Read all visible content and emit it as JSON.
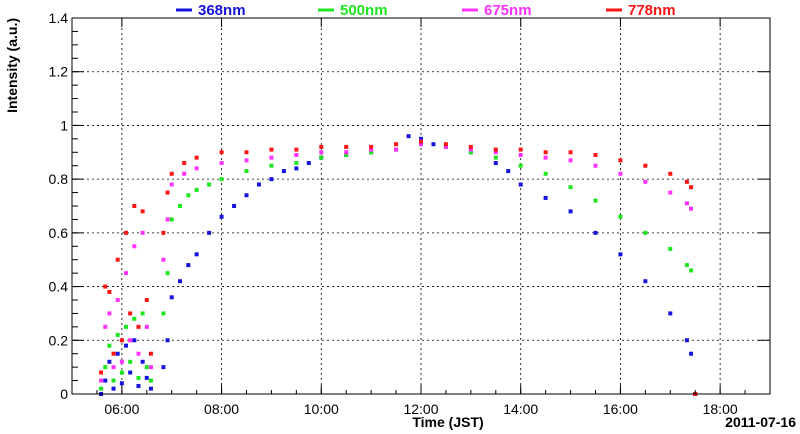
{
  "chart_data": {
    "type": "scatter",
    "title": "",
    "xlabel": "Time (JST)",
    "ylabel": "Intensity (a.u.)",
    "date_label": "2011-07-16",
    "xlim": [
      "05:00",
      "19:00"
    ],
    "ylim": [
      0,
      1.4
    ],
    "grid": true,
    "legend_position": "top",
    "x_ticks": [
      "06:00",
      "08:00",
      "10:00",
      "12:00",
      "14:00",
      "16:00",
      "18:00"
    ],
    "y_ticks": [
      "0",
      "0.2",
      "0.4",
      "0.6",
      "0.8",
      "1",
      "1.2",
      "1.4"
    ],
    "series": [
      {
        "name": "368nm",
        "color": "#1414dc",
        "points": [
          [
            "05:35",
            0.0
          ],
          [
            "05:40",
            0.05
          ],
          [
            "05:45",
            0.12
          ],
          [
            "05:50",
            0.02
          ],
          [
            "05:55",
            0.15
          ],
          [
            "06:00",
            0.04
          ],
          [
            "06:05",
            0.18
          ],
          [
            "06:10",
            0.08
          ],
          [
            "06:15",
            0.2
          ],
          [
            "06:20",
            0.03
          ],
          [
            "06:25",
            0.12
          ],
          [
            "06:30",
            0.06
          ],
          [
            "06:35",
            0.02
          ],
          [
            "06:50",
            0.1
          ],
          [
            "06:55",
            0.2
          ],
          [
            "07:00",
            0.36
          ],
          [
            "07:10",
            0.42
          ],
          [
            "07:20",
            0.48
          ],
          [
            "07:30",
            0.52
          ],
          [
            "07:45",
            0.6
          ],
          [
            "08:00",
            0.66
          ],
          [
            "08:15",
            0.7
          ],
          [
            "08:30",
            0.74
          ],
          [
            "08:45",
            0.78
          ],
          [
            "09:00",
            0.8
          ],
          [
            "09:15",
            0.83
          ],
          [
            "09:30",
            0.84
          ],
          [
            "09:45",
            0.86
          ],
          [
            "10:00",
            0.88
          ],
          [
            "10:30",
            0.89
          ],
          [
            "11:00",
            0.9
          ],
          [
            "11:30",
            0.91
          ],
          [
            "11:45",
            0.96
          ],
          [
            "12:00",
            0.95
          ],
          [
            "12:15",
            0.93
          ],
          [
            "12:30",
            0.92
          ],
          [
            "13:00",
            0.9
          ],
          [
            "13:30",
            0.86
          ],
          [
            "13:45",
            0.83
          ],
          [
            "14:00",
            0.78
          ],
          [
            "14:30",
            0.73
          ],
          [
            "15:00",
            0.68
          ],
          [
            "15:30",
            0.6
          ],
          [
            "16:00",
            0.52
          ],
          [
            "16:30",
            0.42
          ],
          [
            "17:00",
            0.3
          ],
          [
            "17:20",
            0.2
          ],
          [
            "17:25",
            0.15
          ],
          [
            "17:30",
            0.0
          ]
        ]
      },
      {
        "name": "500nm",
        "color": "#1ee61e",
        "points": [
          [
            "05:35",
            0.02
          ],
          [
            "05:40",
            0.1
          ],
          [
            "05:45",
            0.18
          ],
          [
            "05:50",
            0.05
          ],
          [
            "05:55",
            0.22
          ],
          [
            "06:00",
            0.08
          ],
          [
            "06:05",
            0.25
          ],
          [
            "06:10",
            0.12
          ],
          [
            "06:15",
            0.28
          ],
          [
            "06:20",
            0.06
          ],
          [
            "06:25",
            0.3
          ],
          [
            "06:30",
            0.1
          ],
          [
            "06:35",
            0.05
          ],
          [
            "06:50",
            0.3
          ],
          [
            "06:55",
            0.45
          ],
          [
            "07:00",
            0.65
          ],
          [
            "07:10",
            0.7
          ],
          [
            "07:20",
            0.74
          ],
          [
            "07:30",
            0.76
          ],
          [
            "07:45",
            0.78
          ],
          [
            "08:00",
            0.8
          ],
          [
            "08:30",
            0.83
          ],
          [
            "09:00",
            0.85
          ],
          [
            "09:30",
            0.86
          ],
          [
            "10:00",
            0.88
          ],
          [
            "10:30",
            0.89
          ],
          [
            "11:00",
            0.9
          ],
          [
            "11:30",
            0.91
          ],
          [
            "12:00",
            0.93
          ],
          [
            "12:30",
            0.92
          ],
          [
            "13:00",
            0.9
          ],
          [
            "13:30",
            0.88
          ],
          [
            "14:00",
            0.85
          ],
          [
            "14:30",
            0.82
          ],
          [
            "15:00",
            0.77
          ],
          [
            "15:30",
            0.72
          ],
          [
            "16:00",
            0.66
          ],
          [
            "16:30",
            0.6
          ],
          [
            "17:00",
            0.54
          ],
          [
            "17:20",
            0.48
          ],
          [
            "17:25",
            0.46
          ],
          [
            "17:30",
            0.0
          ]
        ]
      },
      {
        "name": "675nm",
        "color": "#ff32ff",
        "points": [
          [
            "05:35",
            0.05
          ],
          [
            "05:40",
            0.25
          ],
          [
            "05:45",
            0.3
          ],
          [
            "05:50",
            0.1
          ],
          [
            "05:55",
            0.35
          ],
          [
            "06:00",
            0.12
          ],
          [
            "06:05",
            0.45
          ],
          [
            "06:10",
            0.2
          ],
          [
            "06:15",
            0.55
          ],
          [
            "06:20",
            0.15
          ],
          [
            "06:25",
            0.6
          ],
          [
            "06:30",
            0.25
          ],
          [
            "06:35",
            0.1
          ],
          [
            "06:50",
            0.5
          ],
          [
            "06:55",
            0.65
          ],
          [
            "07:00",
            0.78
          ],
          [
            "07:15",
            0.82
          ],
          [
            "07:30",
            0.84
          ],
          [
            "08:00",
            0.86
          ],
          [
            "08:30",
            0.87
          ],
          [
            "09:00",
            0.88
          ],
          [
            "09:30",
            0.89
          ],
          [
            "10:00",
            0.9
          ],
          [
            "10:30",
            0.9
          ],
          [
            "11:00",
            0.91
          ],
          [
            "11:30",
            0.91
          ],
          [
            "12:00",
            0.93
          ],
          [
            "12:30",
            0.92
          ],
          [
            "13:00",
            0.91
          ],
          [
            "13:30",
            0.9
          ],
          [
            "14:00",
            0.89
          ],
          [
            "14:30",
            0.88
          ],
          [
            "15:00",
            0.87
          ],
          [
            "15:30",
            0.85
          ],
          [
            "16:00",
            0.82
          ],
          [
            "16:30",
            0.79
          ],
          [
            "17:00",
            0.75
          ],
          [
            "17:20",
            0.71
          ],
          [
            "17:25",
            0.69
          ],
          [
            "17:30",
            0.0
          ]
        ]
      },
      {
        "name": "778nm",
        "color": "#ff1414",
        "points": [
          [
            "05:35",
            0.08
          ],
          [
            "05:40",
            0.4
          ],
          [
            "05:45",
            0.38
          ],
          [
            "05:50",
            0.15
          ],
          [
            "05:55",
            0.5
          ],
          [
            "06:00",
            0.2
          ],
          [
            "06:05",
            0.6
          ],
          [
            "06:10",
            0.3
          ],
          [
            "06:15",
            0.7
          ],
          [
            "06:20",
            0.25
          ],
          [
            "06:25",
            0.68
          ],
          [
            "06:30",
            0.35
          ],
          [
            "06:35",
            0.15
          ],
          [
            "06:50",
            0.6
          ],
          [
            "06:55",
            0.75
          ],
          [
            "07:00",
            0.82
          ],
          [
            "07:15",
            0.86
          ],
          [
            "07:30",
            0.88
          ],
          [
            "08:00",
            0.9
          ],
          [
            "08:30",
            0.9
          ],
          [
            "09:00",
            0.91
          ],
          [
            "09:30",
            0.91
          ],
          [
            "10:00",
            0.92
          ],
          [
            "10:30",
            0.92
          ],
          [
            "11:00",
            0.92
          ],
          [
            "11:30",
            0.93
          ],
          [
            "12:00",
            0.94
          ],
          [
            "12:30",
            0.93
          ],
          [
            "13:00",
            0.92
          ],
          [
            "13:30",
            0.91
          ],
          [
            "14:00",
            0.91
          ],
          [
            "14:30",
            0.9
          ],
          [
            "15:00",
            0.9
          ],
          [
            "15:30",
            0.89
          ],
          [
            "16:00",
            0.87
          ],
          [
            "16:30",
            0.85
          ],
          [
            "17:00",
            0.82
          ],
          [
            "17:20",
            0.79
          ],
          [
            "17:25",
            0.77
          ],
          [
            "17:30",
            0.0
          ]
        ]
      }
    ]
  }
}
